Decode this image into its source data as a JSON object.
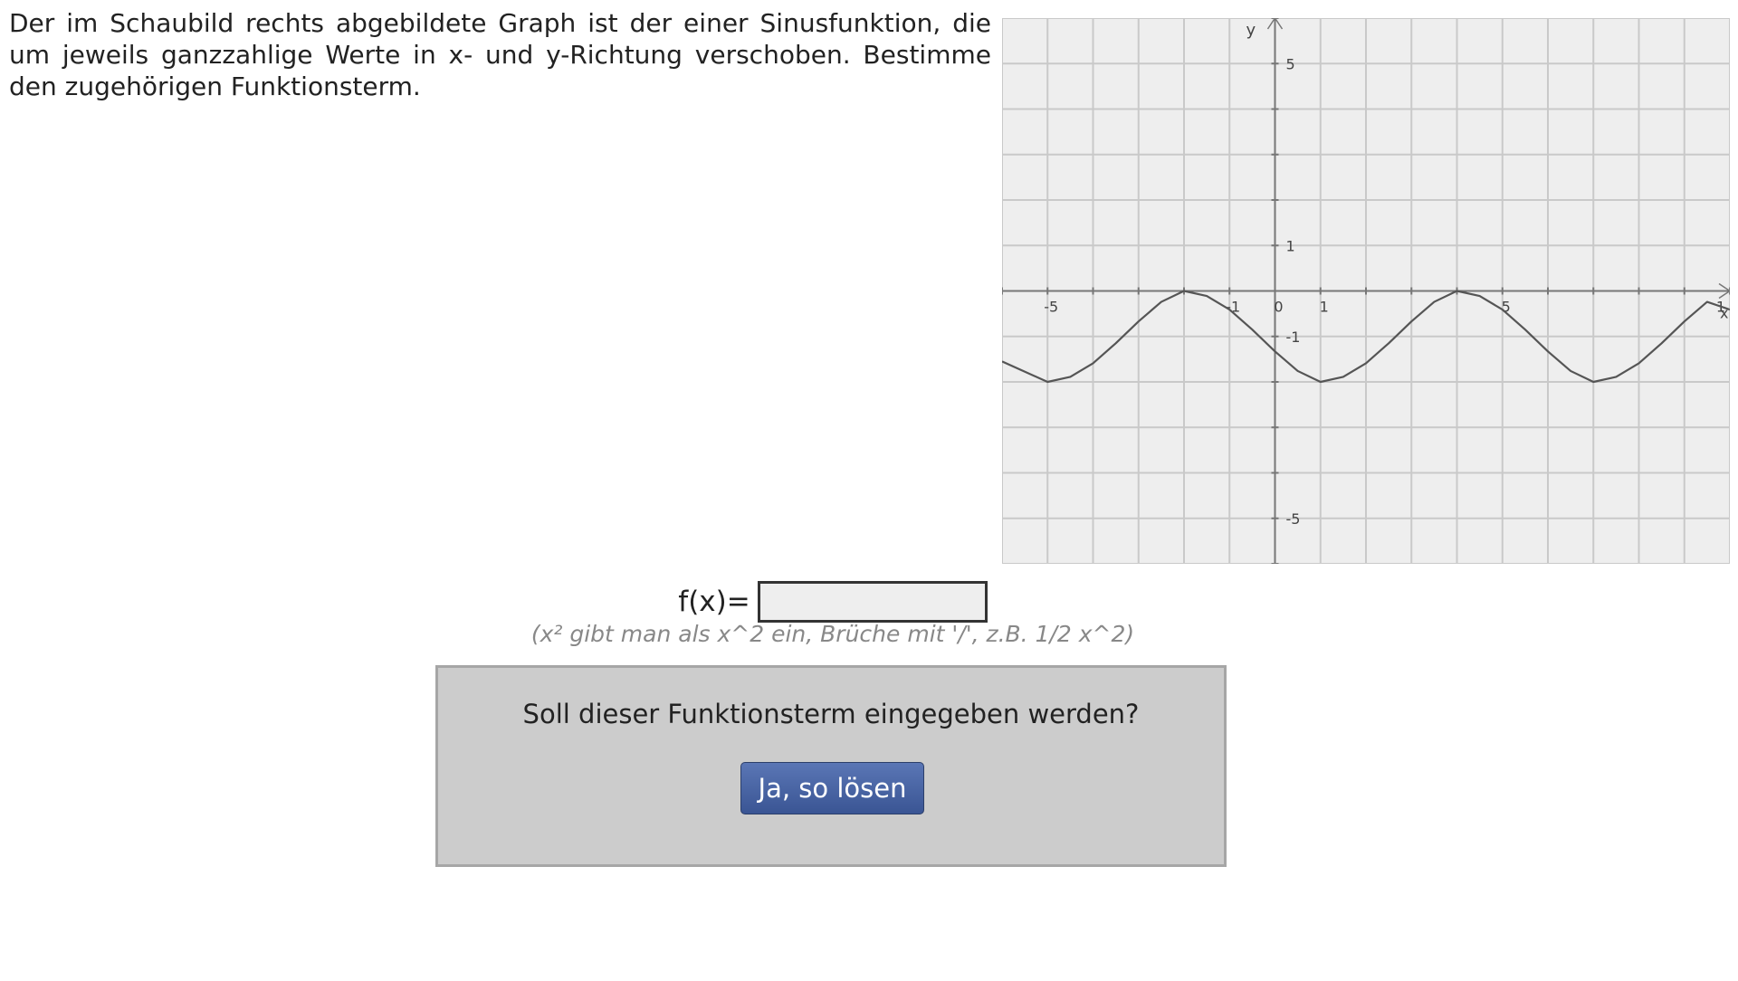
{
  "task": {
    "text": "Der im Schaubild rechts abgebildete Graph ist der einer Sinusfunktion, die um jeweils ganzzahlige Werte in x- und y-Richtung verschoben. Bestimme den zugehörigen Funktionsterm."
  },
  "answer": {
    "label": "f(x)=",
    "value": "",
    "hint": "(x² gibt man als x^2 ein, Brüche mit '/', z.B. 1/2 x^2)"
  },
  "confirm": {
    "question": "Soll dieser Funktionsterm eingegeben werden?",
    "button_label": "Ja, so lösen"
  },
  "chart_data": {
    "type": "line",
    "xlim": [
      -6,
      10
    ],
    "ylim": [
      -6,
      6
    ],
    "grid": true,
    "x_axis_label": "x",
    "y_axis_label": "y",
    "x_ticks": [
      "-5",
      "-1",
      "0",
      "1",
      "5",
      "1"
    ],
    "y_ticks": [
      "5",
      "1",
      "-1",
      "-5"
    ],
    "series": [
      {
        "x": [
          -6,
          -5,
          -4.5,
          -4,
          -3.5,
          -3,
          -2.5,
          -2,
          -1.5,
          -1,
          -0.5,
          0,
          0.5,
          1,
          1.5,
          2,
          2.5,
          3,
          3.5,
          4,
          4.5,
          5,
          5.5,
          6,
          6.5,
          7,
          7.5,
          8,
          8.5,
          9,
          9.5,
          10
        ],
        "y": [
          -1.55,
          -2,
          -1.89,
          -1.59,
          -1.15,
          -0.67,
          -0.24,
          0,
          -0.11,
          -0.41,
          -0.85,
          -1.33,
          -1.76,
          -2,
          -1.89,
          -1.59,
          -1.15,
          -0.67,
          -0.24,
          0,
          -0.11,
          -0.41,
          -0.85,
          -1.33,
          -1.76,
          -2,
          -1.89,
          -1.59,
          -1.15,
          -0.67,
          -0.24,
          -0.41
        ]
      }
    ]
  }
}
